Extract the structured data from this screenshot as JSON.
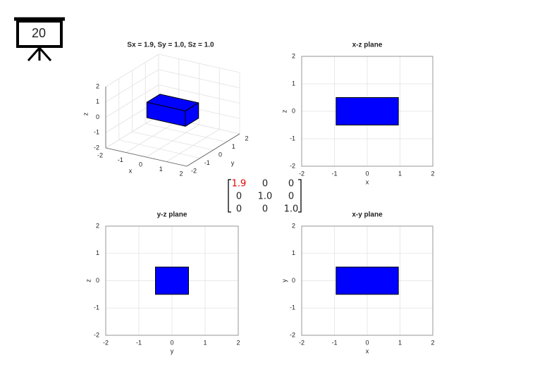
{
  "slide_number": "20",
  "matrix": [
    [
      "1.9",
      "0",
      "0"
    ],
    [
      "0",
      "1.0",
      "0"
    ],
    [
      "0",
      "0",
      "1.0"
    ]
  ],
  "chart_data": [
    {
      "type": "box3d",
      "title": "Sx = 1.9, Sy = 1.0, Sz = 1.0",
      "xlabel": "x",
      "ylabel": "y",
      "zlabel": "z",
      "xlim": [
        -2,
        2
      ],
      "ylim": [
        -2,
        2
      ],
      "zlim": [
        -2,
        2
      ],
      "xticks": [
        -2,
        -1,
        0,
        1,
        2
      ],
      "yticks": [
        -2,
        -1,
        0,
        1,
        2
      ],
      "zticks": [
        -2,
        -1,
        0,
        1,
        2
      ],
      "box": {
        "x": [
          -0.95,
          0.95
        ],
        "y": [
          -0.5,
          0.5
        ],
        "z": [
          -0.5,
          0.5
        ]
      },
      "color": "#0000ff",
      "grid": true
    },
    {
      "type": "rect",
      "title": "x-z plane",
      "xlabel": "x",
      "ylabel": "z",
      "xlim": [
        -2,
        2
      ],
      "ylim": [
        -2,
        2
      ],
      "xticks": [
        -2,
        -1,
        0,
        1,
        2
      ],
      "yticks": [
        -2,
        -1,
        0,
        1,
        2
      ],
      "rect": {
        "x": [
          -0.95,
          0.95
        ],
        "y": [
          -0.5,
          0.5
        ]
      },
      "color": "#0000ff",
      "grid": true
    },
    {
      "type": "rect",
      "title": "y-z plane",
      "xlabel": "y",
      "ylabel": "z",
      "xlim": [
        -2,
        2
      ],
      "ylim": [
        -2,
        2
      ],
      "xticks": [
        -2,
        -1,
        0,
        1,
        2
      ],
      "yticks": [
        -2,
        -1,
        0,
        1,
        2
      ],
      "rect": {
        "x": [
          -0.5,
          0.5
        ],
        "y": [
          -0.5,
          0.5
        ]
      },
      "color": "#0000ff",
      "grid": true
    },
    {
      "type": "rect",
      "title": "x-y plane",
      "xlabel": "x",
      "ylabel": "y",
      "xlim": [
        -2,
        2
      ],
      "ylim": [
        -2,
        2
      ],
      "xticks": [
        -2,
        -1,
        0,
        1,
        2
      ],
      "yticks": [
        -2,
        -1,
        0,
        1,
        2
      ],
      "rect": {
        "x": [
          -0.95,
          0.95
        ],
        "y": [
          -0.5,
          0.5
        ]
      },
      "color": "#0000ff",
      "grid": true
    }
  ]
}
